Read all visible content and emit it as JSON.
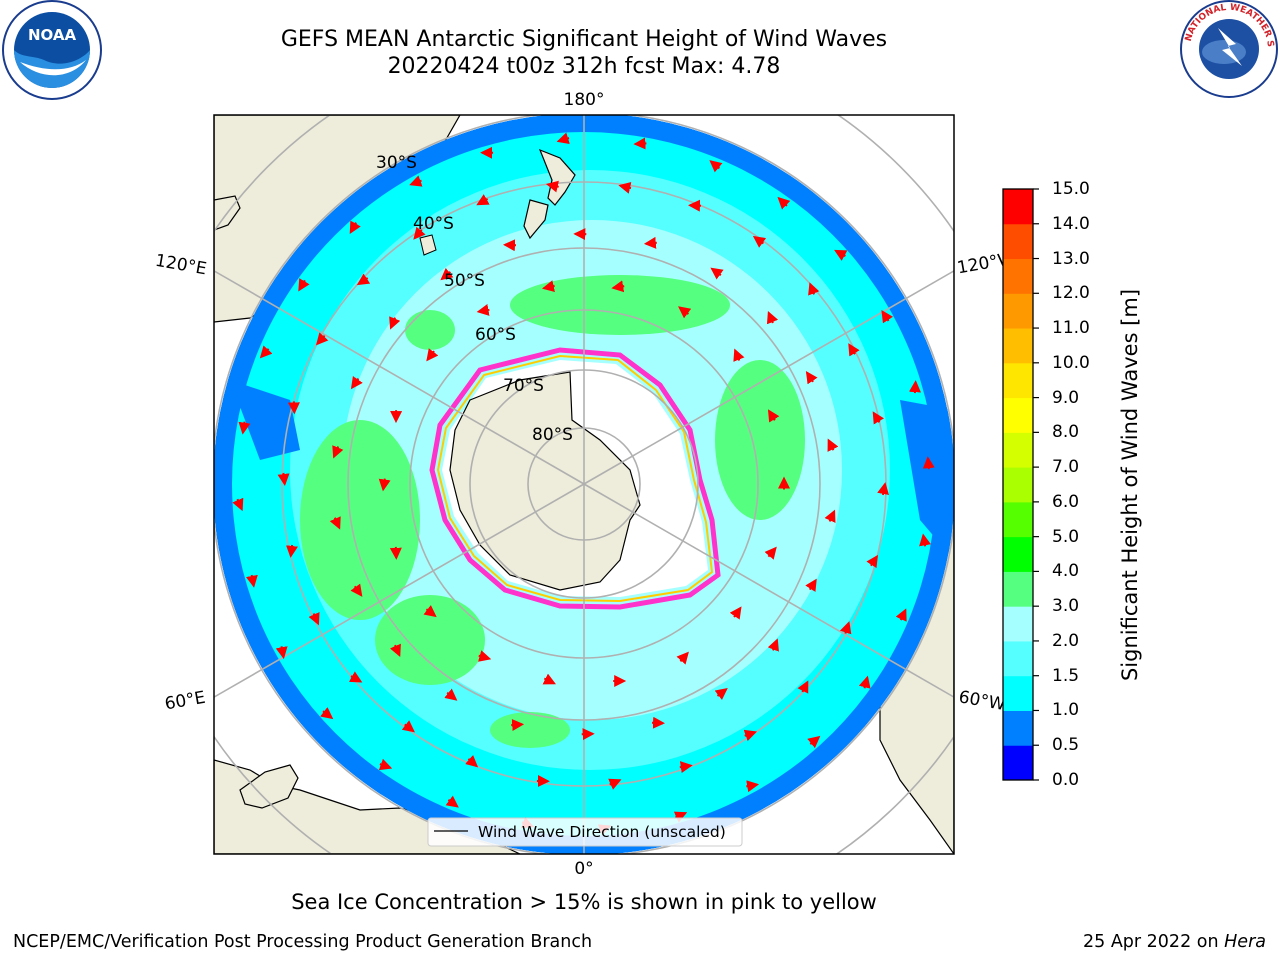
{
  "title_line1": "GEFS MEAN Antarctic Significant Height of Wind Waves",
  "title_line2": "20220424 t00z 312h fcst   Max: 4.78",
  "map": {
    "lon_labels": [
      {
        "text": "180°"
      },
      {
        "text": "120°E"
      },
      {
        "text": "120°W"
      },
      {
        "text": "60°E"
      },
      {
        "text": "60°W"
      },
      {
        "text": "0°"
      }
    ],
    "lat_labels": [
      {
        "text": "30°S"
      },
      {
        "text": "40°S"
      },
      {
        "text": "50°S"
      },
      {
        "text": "60°S"
      },
      {
        "text": "70°S"
      },
      {
        "text": "80°S"
      }
    ],
    "legend_label": "Wind Wave Direction (unscaled)",
    "arrow_color": "#ff0000",
    "ocean_colors": [
      "#0000ff",
      "#0080ff",
      "#00ffff",
      "#55ffff",
      "#a6ffff",
      "#55ff7f"
    ]
  },
  "colorbar": {
    "label": "Significant Height of Wind Waves [m]",
    "ticks": [
      "0.0",
      "0.5",
      "1.0",
      "1.5",
      "2.0",
      "3.0",
      "4.0",
      "5.0",
      "6.0",
      "7.0",
      "8.0",
      "9.0",
      "10.0",
      "11.0",
      "12.0",
      "13.0",
      "14.0",
      "15.0"
    ],
    "colors": [
      "#0000ff",
      "#0080ff",
      "#00ffff",
      "#55ffff",
      "#a6ffff",
      "#55ff7f",
      "#00ff00",
      "#55ff00",
      "#aaff00",
      "#d4ff00",
      "#ffff00",
      "#ffe600",
      "#ffbf00",
      "#ff9900",
      "#ff7300",
      "#ff4d00",
      "#ff0000"
    ]
  },
  "bottom_note": "Sea Ice Concentration > 15% is shown in pink to yellow",
  "footer": {
    "left": "NCEP/EMC/Verification Post Processing Product Generation Branch",
    "right_prefix": "25 Apr 2022 on ",
    "right_host": "Hera"
  },
  "logos": {
    "noaa": "NOAA",
    "nws_text": "NATIONAL WEATHER SERVICE"
  }
}
